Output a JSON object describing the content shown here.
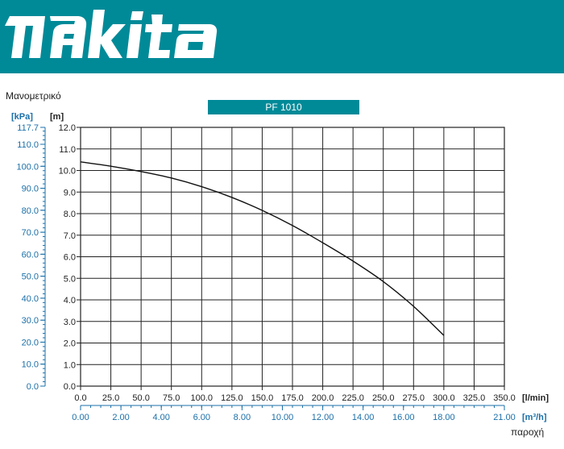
{
  "brand": {
    "name": "makita",
    "color": "#008a98"
  },
  "chart_data": {
    "type": "line",
    "title": "PF 1010",
    "ylabel": "Μανομετρικό",
    "xlabel": "παροχή",
    "y_unit": "[m]",
    "y2_unit": "[kPa]",
    "x_unit": "[l/min]",
    "x2_unit": "[m³/h]",
    "ylim": [
      0,
      12
    ],
    "xlim": [
      0,
      350
    ],
    "y_ticks": [
      "0.0",
      "1.0",
      "2.0",
      "3.0",
      "4.0",
      "5.0",
      "6.0",
      "7.0",
      "8.0",
      "9.0",
      "10.0",
      "11.0",
      "12.0"
    ],
    "y2_ticks": [
      {
        "value": 0,
        "label": "0.0"
      },
      {
        "value": 10,
        "label": "10.0"
      },
      {
        "value": 20,
        "label": "20.0"
      },
      {
        "value": 30,
        "label": "30.0"
      },
      {
        "value": 40,
        "label": "40.0"
      },
      {
        "value": 50,
        "label": "50.0"
      },
      {
        "value": 60,
        "label": "60.0"
      },
      {
        "value": 70,
        "label": "70.0"
      },
      {
        "value": 80,
        "label": "80.0"
      },
      {
        "value": 90,
        "label": "90.0"
      },
      {
        "value": 100,
        "label": "100.0"
      },
      {
        "value": 110,
        "label": "110.0"
      },
      {
        "value": 117.7,
        "label": "117.7"
      }
    ],
    "y2_max": 117.7,
    "x_ticks": [
      "0.0",
      "25.0",
      "50.0",
      "75.0",
      "100.0",
      "125.0",
      "150.0",
      "175.0",
      "200.0",
      "225.0",
      "250.0",
      "275.0",
      "300.0",
      "325.0",
      "350.0"
    ],
    "x2_ticks": [
      {
        "value": 0,
        "label": "0.00"
      },
      {
        "value": 2,
        "label": "2.00"
      },
      {
        "value": 4,
        "label": "4.00"
      },
      {
        "value": 6,
        "label": "6.00"
      },
      {
        "value": 8,
        "label": "8.00"
      },
      {
        "value": 10,
        "label": "10.00"
      },
      {
        "value": 12,
        "label": "12.00"
      },
      {
        "value": 14,
        "label": "14.00"
      },
      {
        "value": 16,
        "label": "16.00"
      },
      {
        "value": 18,
        "label": "18.00"
      },
      {
        "value": 21,
        "label": "21.00"
      }
    ],
    "x2_max": 21,
    "grid": true,
    "series": [
      {
        "x": [
          0,
          25,
          50,
          75,
          100,
          125,
          150,
          175,
          200,
          225,
          250,
          275,
          300
        ],
        "y": [
          10.4,
          10.2,
          9.95,
          9.65,
          9.25,
          8.75,
          8.15,
          7.45,
          6.65,
          5.8,
          4.85,
          3.7,
          2.35
        ]
      }
    ]
  }
}
